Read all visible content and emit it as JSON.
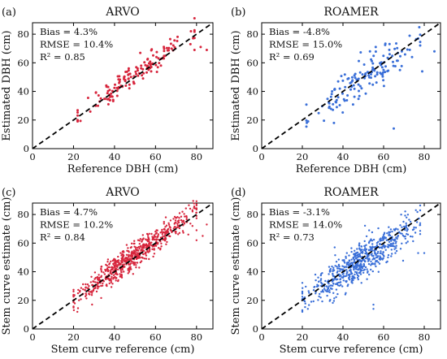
{
  "chart_data": [
    {
      "panel": "(a)",
      "type": "scatter",
      "title": "ARVO",
      "xlabel": "Reference DBH (cm)",
      "ylabel": "Estimated DBH (cm)",
      "xlim": [
        0,
        88
      ],
      "ylim": [
        0,
        88
      ],
      "xticks": [
        0,
        20,
        40,
        60,
        80
      ],
      "yticks": [
        0,
        20,
        40,
        60,
        80
      ],
      "color": "#d7263d",
      "grid": false,
      "reference_line": "1:1 dashed",
      "stats": [
        "Bias = 4.3%",
        "RMSE = 10.4%",
        "R² = 0.85"
      ],
      "n_points": 150,
      "seed": 11,
      "point_radius": 1.5,
      "spread": 4.5,
      "x_range": [
        22,
        85
      ],
      "outliers": [
        [
          85,
          69
        ],
        [
          82,
          71
        ],
        [
          79,
          69
        ],
        [
          77,
          73
        ],
        [
          64,
          63
        ]
      ]
    },
    {
      "panel": "(b)",
      "type": "scatter",
      "title": "ROAMER",
      "xlabel": "Reference DBH (cm)",
      "ylabel": "Estimated DBH (cm)",
      "xlim": [
        0,
        88
      ],
      "ylim": [
        0,
        88
      ],
      "xticks": [
        0,
        20,
        40,
        60,
        80
      ],
      "yticks": [
        0,
        20,
        40,
        60,
        80
      ],
      "color": "#3a6fd8",
      "grid": false,
      "reference_line": "1:1 dashed",
      "stats": [
        "Bias = -4.8%",
        "RMSE = 15.0%",
        "R² = 0.69"
      ],
      "n_points": 150,
      "seed": 23,
      "point_radius": 1.5,
      "spread": 6.5,
      "x_range": [
        22,
        84
      ],
      "outliers": [
        [
          65,
          14
        ],
        [
          85,
          68
        ],
        [
          79,
          54
        ],
        [
          77,
          77
        ],
        [
          74,
          64
        ]
      ]
    },
    {
      "panel": "(c)",
      "type": "scatter",
      "title": "ARVO",
      "xlabel": "Stem curve reference (cm)",
      "ylabel": "Stem curve estimate (cm)",
      "xlim": [
        0,
        88
      ],
      "ylim": [
        0,
        88
      ],
      "xticks": [
        0,
        20,
        40,
        60,
        80
      ],
      "yticks": [
        0,
        20,
        40,
        60,
        80
      ],
      "color": "#d7263d",
      "grid": false,
      "reference_line": "1:1 dashed",
      "stats": [
        "Bias = 4.7%",
        "RMSE = 10.2%",
        "R² = 0.84"
      ],
      "n_points": 650,
      "seed": 37,
      "point_radius": 1.2,
      "spread": 4.5,
      "x_range": [
        20,
        86
      ],
      "outliers": [
        [
          85,
          73
        ],
        [
          83,
          65
        ],
        [
          80,
          69
        ],
        [
          80,
          62
        ],
        [
          78,
          72
        ],
        [
          76,
          66
        ]
      ]
    },
    {
      "panel": "(d)",
      "type": "scatter",
      "title": "ROAMER",
      "xlabel": "Stem curve reference (cm)",
      "ylabel": "Stem curve estimate (cm)",
      "xlim": [
        0,
        88
      ],
      "ylim": [
        0,
        88
      ],
      "xticks": [
        0,
        20,
        40,
        60,
        80
      ],
      "yticks": [
        0,
        20,
        40,
        60,
        80
      ],
      "color": "#3a6fd8",
      "grid": false,
      "reference_line": "1:1 dashed",
      "stats": [
        "Bias = -3.1%",
        "RMSE = 14.0%",
        "R² = 0.73"
      ],
      "n_points": 650,
      "seed": 59,
      "point_radius": 1.2,
      "spread": 6.0,
      "x_range": [
        20,
        84
      ],
      "outliers": [
        [
          55,
          17
        ],
        [
          55,
          14
        ],
        [
          77,
          53
        ],
        [
          80,
          53
        ],
        [
          75,
          71
        ],
        [
          72,
          66
        ]
      ]
    }
  ]
}
